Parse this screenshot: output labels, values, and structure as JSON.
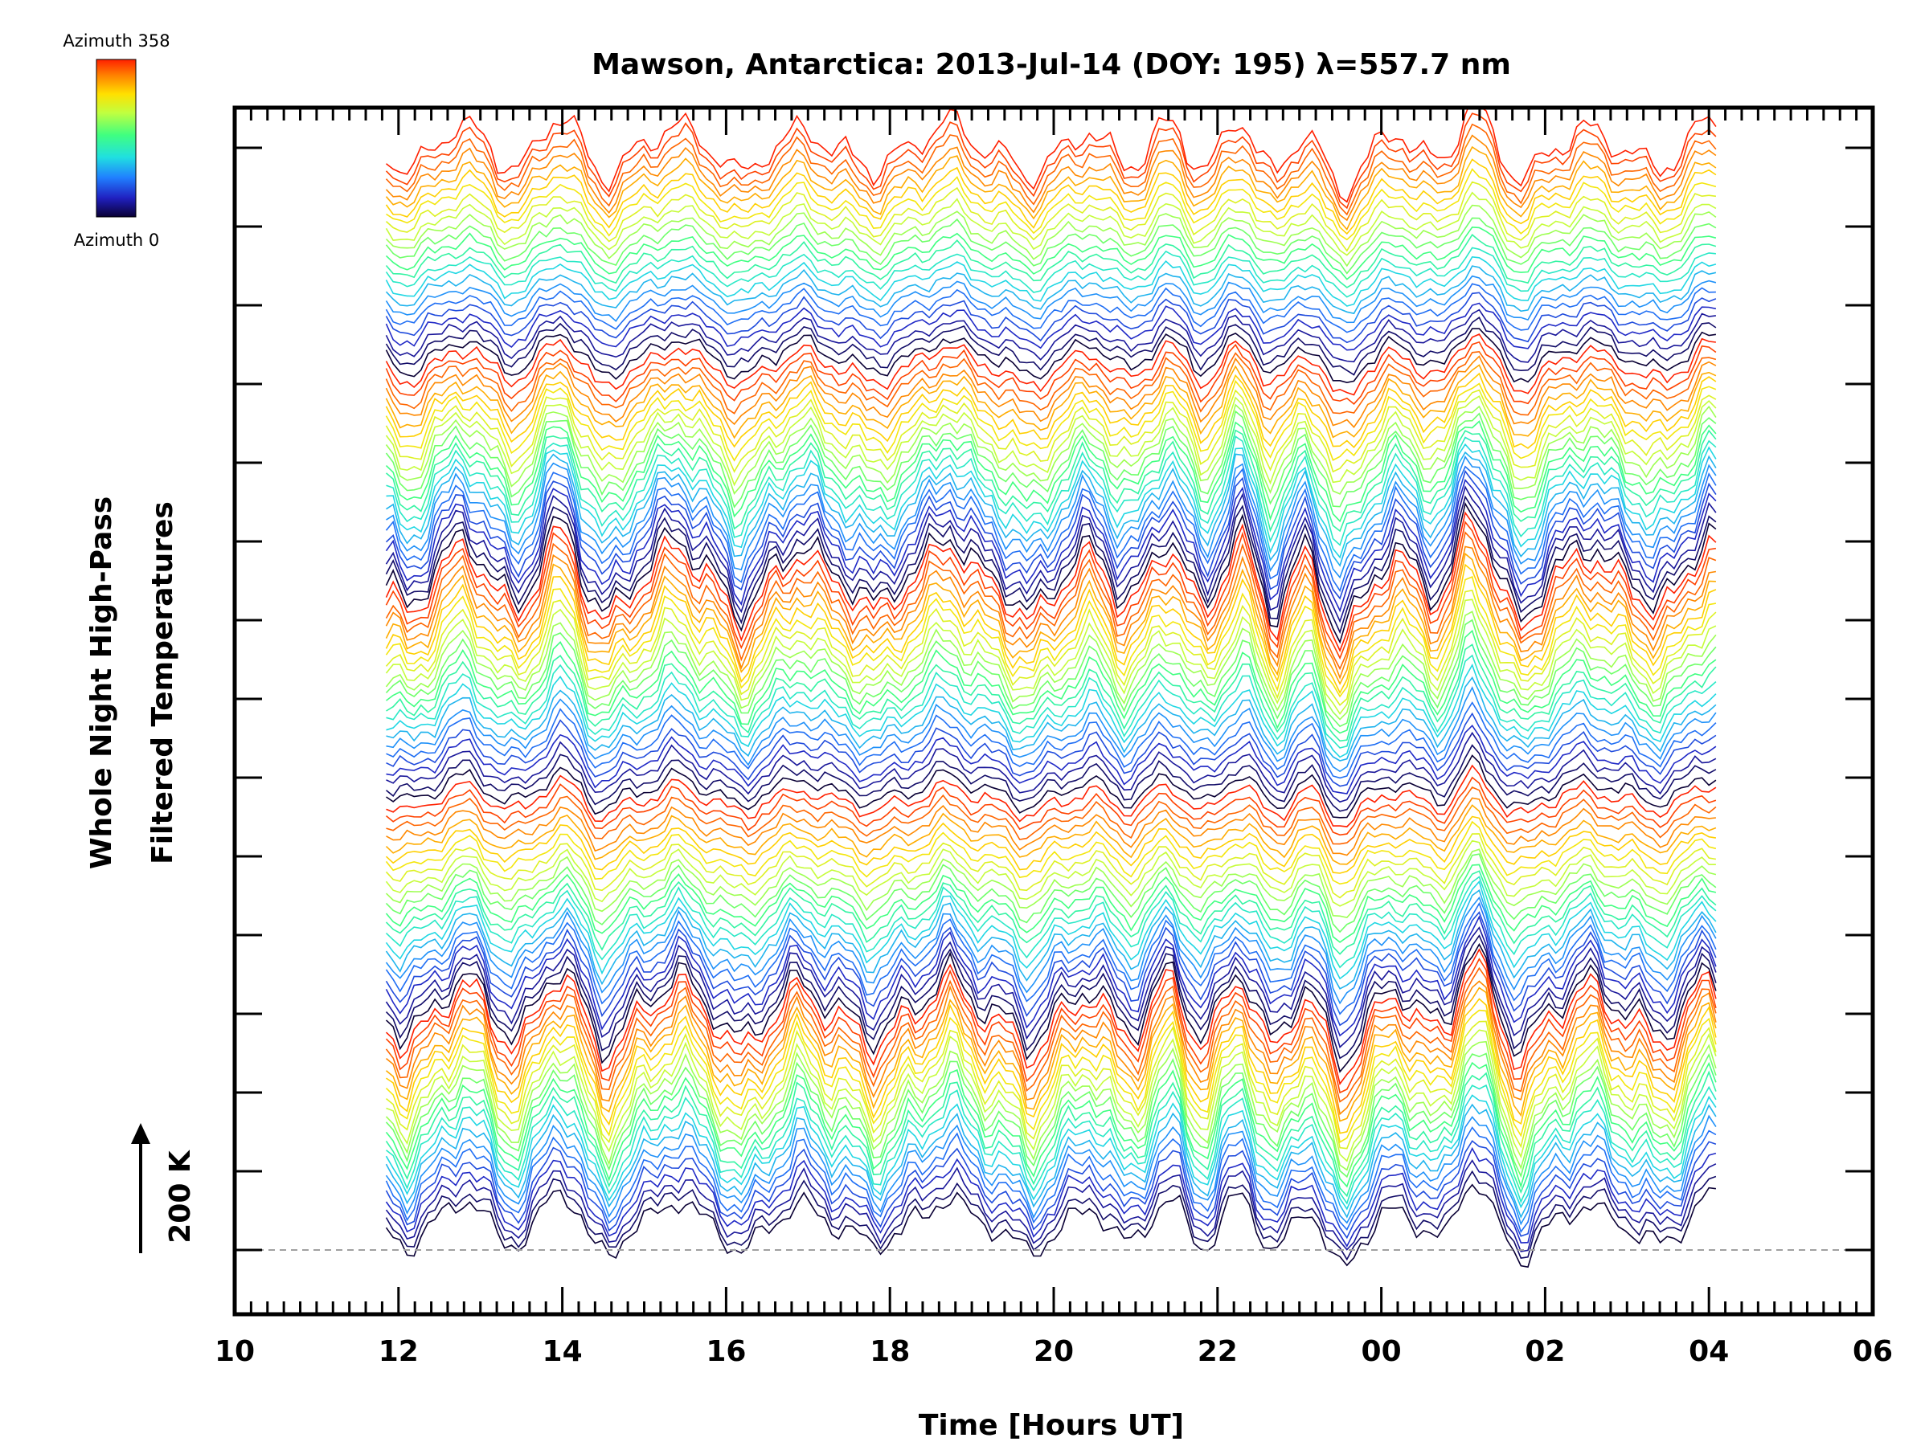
{
  "chart_data": {
    "type": "line",
    "title": "Mawson, Antarctica: 2013-Jul-14 (DOY: 195) λ=557.7 nm",
    "xlabel": "Time [Hours UT]",
    "ylabel_line1": "Whole Night High-Pass",
    "ylabel_line2": "Filtered Temperatures",
    "scale_label": "200 K",
    "x_tick_labels": [
      "10",
      "12",
      "14",
      "16",
      "18",
      "20",
      "22",
      "00",
      "02",
      "04",
      "06"
    ],
    "xlim_hours": [
      10,
      30
    ],
    "data_time_range_hours": [
      11.85,
      28.1
    ],
    "colorbar": {
      "top_label": "Azimuth 358",
      "bottom_label": "Azimuth 0",
      "colormap": [
        "#0a0035",
        "#2020c0",
        "#2080ff",
        "#20e0e0",
        "#40ff80",
        "#c0ff40",
        "#ffe000",
        "#ff8000",
        "#ff2000"
      ]
    },
    "series_count": 115,
    "series_note_shown": "stacked azimuth traces, colour by azimuth 0–358",
    "event_times_hours": [
      12.1,
      12.8,
      13.4,
      14.0,
      14.5,
      15.4,
      16.2,
      16.9,
      17.8,
      18.7,
      19.7,
      20.5,
      20.9,
      21.4,
      21.8,
      22.3,
      22.7,
      23.1,
      23.5,
      24.2,
      24.8,
      25.1,
      25.7,
      26.5,
      27.4,
      28.0
    ],
    "baseline_dashed": true
  }
}
